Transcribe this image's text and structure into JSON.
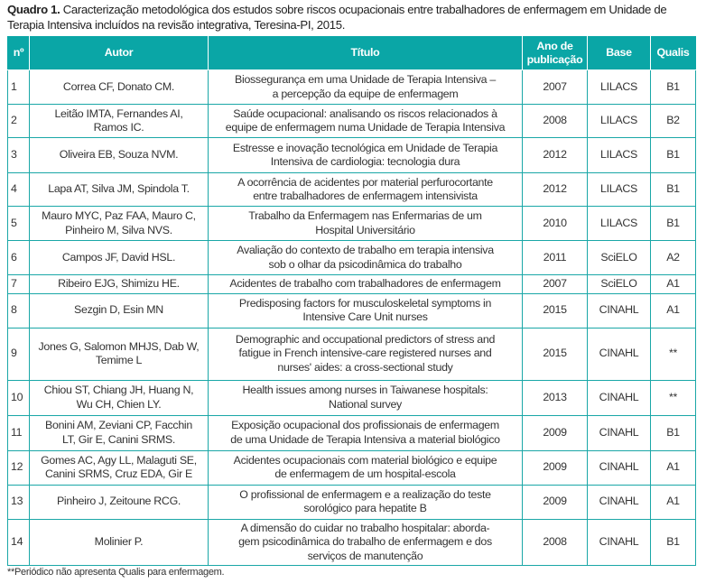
{
  "caption": {
    "label": "Quadro 1.",
    "text": " Caracterização metodológica dos estudos sobre riscos ocupacionais entre trabalhadores de enfermagem em Unidade de Terapia Intensiva incluídos na revisão integrativa, Teresina-PI, 2015."
  },
  "header_color": "#0aa6a6",
  "columns": [
    "nº",
    "Autor",
    "Título",
    "Ano de publicação",
    "Base",
    "Qualis"
  ],
  "rows": [
    [
      "1",
      "Correa CF, Donato CM.",
      "Biossegurança em uma Unidade de Terapia Intensiva –\na percepção da equipe de enfermagem",
      "2007",
      "LILACS",
      "B1"
    ],
    [
      "2",
      "Leitão IMTA, Fernandes AI,\nRamos IC.",
      "Saúde ocupacional: analisando os riscos relacionados à\nequipe de enfermagem numa Unidade de Terapia Intensiva",
      "2008",
      "LILACS",
      "B2"
    ],
    [
      "3",
      "Oliveira EB, Souza NVM.",
      "Estresse e inovação tecnológica em Unidade de Terapia\nIntensiva de cardiologia: tecnologia dura",
      "2012",
      "LILACS",
      "B1"
    ],
    [
      "4",
      "Lapa AT, Silva JM, Spindola T.",
      "A ocorrência de acidentes por material perfurocortante\nentre trabalhadores de enfermagem intensivista",
      "2012",
      "LILACS",
      "B1"
    ],
    [
      "5",
      "Mauro MYC, Paz FAA, Mauro C,\nPinheiro M, Silva NVS.",
      "Trabalho da Enfermagem nas Enfermarias de um\nHospital Universitário",
      "2010",
      "LILACS",
      "B1"
    ],
    [
      "6",
      "Campos JF, David HSL.",
      "Avaliação do contexto de trabalho em terapia intensiva\nsob o olhar da psicodinâmica do trabalho",
      "2011",
      "SciELO",
      "A2"
    ],
    [
      "7",
      "Ribeiro EJG, Shimizu HE.",
      "Acidentes de trabalho com trabalhadores de enfermagem",
      "2007",
      "SciELO",
      "A1"
    ],
    [
      "8",
      "Sezgin D, Esin MN",
      "Predisposing factors for musculoskeletal symptoms in\nIntensive Care Unit nurses",
      "2015",
      "CINAHL",
      "A1"
    ],
    [
      "9",
      "Jones G, Salomon MHJS, Dab W,\nTemime L",
      "Demographic and occupational predictors of stress and\nfatigue in French intensive-care registered nurses and\nnurses' aides: a cross-sectional study",
      "2015",
      "CINAHL",
      "**"
    ],
    [
      "10",
      "Chiou ST, Chiang JH, Huang N,\nWu CH, Chien LY.",
      "Health issues among nurses in Taiwanese hospitals:\nNational survey",
      "2013",
      "CINAHL",
      "**"
    ],
    [
      "11",
      "Bonini AM, Zeviani CP, Facchin\nLT, Gir E, Canini SRMS.",
      "Exposição ocupacional dos profissionais de enfermagem\nde uma Unidade de Terapia Intensiva a material biológico",
      "2009",
      "CINAHL",
      "B1"
    ],
    [
      "12",
      "Gomes AC, Agy LL, Malaguti SE,\nCanini SRMS, Cruz EDA, Gir E",
      "Acidentes ocupacionais com material biológico e equipe\nde enfermagem de um hospital-escola",
      "2009",
      "CINAHL",
      "A1"
    ],
    [
      "13",
      "Pinheiro J, Zeitoune RCG.",
      "O profissional de enfermagem e a realização do teste\nsorológico para hepatite B",
      "2009",
      "CINAHL",
      "A1"
    ],
    [
      "14",
      "Molinier P.",
      "A dimensão do cuidar no trabalho hospitalar: aborda-\ngem psicodinâmica do trabalho de enfermagem e dos\nserviços de manutenção",
      "2008",
      "CINAHL",
      "B1"
    ]
  ],
  "footnote": "**Periódico não apresenta Qualis para enfermagem."
}
